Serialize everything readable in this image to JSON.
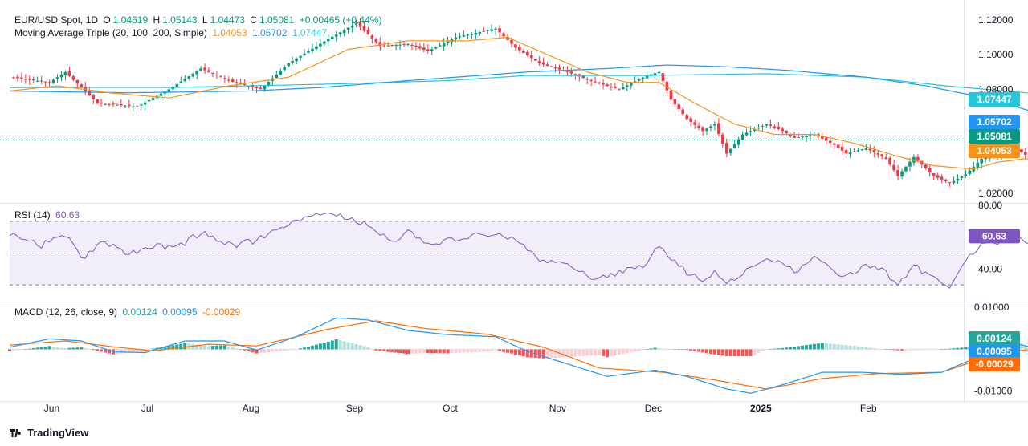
{
  "header": {
    "symbol": "EUR/USD Spot, 1D",
    "open_label": "O",
    "open": "1.04619",
    "high_label": "H",
    "high": "1.05143",
    "low_label": "L",
    "low": "1.04473",
    "close_label": "C",
    "close": "1.05081",
    "change": "+0.00465 (+0.44%)"
  },
  "ma_legend": {
    "label": "Moving Average Triple (20, 100, 200, Simple)",
    "ma20": "1.04053",
    "ma100": "1.05702",
    "ma200": "1.07447"
  },
  "rsi_legend": {
    "label": "RSI (14)",
    "value": "60.63"
  },
  "macd_legend": {
    "label": "MACD (12, 26, close, 9)",
    "histogram": "0.00124",
    "macd": "0.00095",
    "signal": "-0.00029"
  },
  "footer": {
    "brand": "TradingView"
  },
  "colors": {
    "up": "#089981",
    "down": "#f23645",
    "ma20": "#f7931a",
    "ma100": "#2196f3",
    "ma200": "#26c6da",
    "rsi": "#7e57c2",
    "macd": "#2196f3",
    "signal": "#ff6d00",
    "hist_up": "#26a69a",
    "hist_up_light": "#b2dfdb",
    "hist_down": "#ff5252",
    "hist_down_light": "#ffcdd2"
  },
  "chart_data": [
    {
      "type": "candlestick",
      "title": "EUR/USD Spot, 1D",
      "ylim": [
        1.015,
        1.125
      ],
      "y_ticks": [
        "1.12000",
        "1.10000",
        "1.08000",
        "1.02000"
      ],
      "x_ticks": [
        "Jun",
        "Jul",
        "Aug",
        "Sep",
        "Oct",
        "Nov",
        "Dec",
        "2025",
        "Feb"
      ],
      "close_anchors": [
        [
          0,
          1.087
        ],
        [
          10,
          1.084
        ],
        [
          14,
          1.09
        ],
        [
          22,
          1.072
        ],
        [
          32,
          1.07
        ],
        [
          40,
          1.08
        ],
        [
          48,
          1.092
        ],
        [
          55,
          1.085
        ],
        [
          63,
          1.08
        ],
        [
          70,
          1.095
        ],
        [
          80,
          1.109
        ],
        [
          87,
          1.118
        ],
        [
          93,
          1.105
        ],
        [
          100,
          1.106
        ],
        [
          105,
          1.102
        ],
        [
          112,
          1.11
        ],
        [
          118,
          1.113
        ],
        [
          122,
          1.115
        ],
        [
          127,
          1.104
        ],
        [
          133,
          1.095
        ],
        [
          140,
          1.09
        ],
        [
          147,
          1.084
        ],
        [
          153,
          1.08
        ],
        [
          160,
          1.088
        ],
        [
          163,
          1.09
        ],
        [
          166,
          1.074
        ],
        [
          170,
          1.063
        ],
        [
          174,
          1.056
        ],
        [
          177,
          1.06
        ],
        [
          180,
          1.043
        ],
        [
          184,
          1.054
        ],
        [
          190,
          1.06
        ],
        [
          194,
          1.056
        ],
        [
          197,
          1.052
        ],
        [
          202,
          1.054
        ],
        [
          207,
          1.048
        ],
        [
          210,
          1.043
        ],
        [
          215,
          1.046
        ],
        [
          220,
          1.04
        ],
        [
          223,
          1.03
        ],
        [
          227,
          1.041
        ],
        [
          232,
          1.03
        ],
        [
          236,
          1.026
        ],
        [
          240,
          1.031
        ],
        [
          244,
          1.04
        ],
        [
          248,
          1.042
        ],
        [
          251,
          1.047
        ],
        [
          254,
          1.044
        ],
        [
          257,
          1.039
        ],
        [
          260,
          1.032
        ],
        [
          263,
          1.038
        ],
        [
          265,
          1.03
        ],
        [
          267,
          1.03
        ],
        [
          270,
          1.038
        ],
        [
          272,
          1.042
        ],
        [
          273,
          1.0508
        ]
      ],
      "ma20_anchors": [
        [
          0,
          1.079
        ],
        [
          12,
          1.082
        ],
        [
          25,
          1.078
        ],
        [
          40,
          1.075
        ],
        [
          55,
          1.082
        ],
        [
          70,
          1.087
        ],
        [
          85,
          1.103
        ],
        [
          100,
          1.108
        ],
        [
          115,
          1.108
        ],
        [
          125,
          1.11
        ],
        [
          135,
          1.1
        ],
        [
          145,
          1.09
        ],
        [
          155,
          1.084
        ],
        [
          163,
          1.084
        ],
        [
          172,
          1.072
        ],
        [
          182,
          1.06
        ],
        [
          192,
          1.054
        ],
        [
          202,
          1.054
        ],
        [
          212,
          1.049
        ],
        [
          222,
          1.042
        ],
        [
          232,
          1.036
        ],
        [
          242,
          1.034
        ],
        [
          248,
          1.038
        ],
        [
          255,
          1.04
        ],
        [
          263,
          1.038
        ],
        [
          273,
          1.0405
        ]
      ],
      "ma100_anchors": [
        [
          0,
          1.079
        ],
        [
          30,
          1.078
        ],
        [
          60,
          1.079
        ],
        [
          78,
          1.081
        ],
        [
          100,
          1.085
        ],
        [
          130,
          1.09
        ],
        [
          150,
          1.092
        ],
        [
          165,
          1.094
        ],
        [
          180,
          1.093
        ],
        [
          195,
          1.091
        ],
        [
          215,
          1.087
        ],
        [
          230,
          1.082
        ],
        [
          245,
          1.075
        ],
        [
          260,
          1.065
        ],
        [
          273,
          1.057
        ]
      ],
      "ma200_anchors": [
        [
          0,
          1.081
        ],
        [
          40,
          1.081
        ],
        [
          80,
          1.083
        ],
        [
          110,
          1.085
        ],
        [
          130,
          1.088
        ],
        [
          160,
          1.088
        ],
        [
          190,
          1.089
        ],
        [
          215,
          1.087
        ],
        [
          235,
          1.082
        ],
        [
          255,
          1.078
        ],
        [
          273,
          1.0745
        ]
      ],
      "last_close": 1.05081,
      "ma20": 1.04053,
      "ma100": 1.05702,
      "ma200": 1.07447
    },
    {
      "type": "line",
      "title": "RSI (14)",
      "ylim": [
        20,
        80
      ],
      "y_ticks": [
        "80.00",
        "40.00"
      ],
      "bands": [
        70,
        50,
        30
      ],
      "anchors": [
        [
          0,
          62
        ],
        [
          8,
          55
        ],
        [
          14,
          62
        ],
        [
          18,
          47
        ],
        [
          24,
          57
        ],
        [
          30,
          50
        ],
        [
          36,
          55
        ],
        [
          42,
          53
        ],
        [
          48,
          63
        ],
        [
          56,
          55
        ],
        [
          62,
          58
        ],
        [
          70,
          68
        ],
        [
          76,
          73
        ],
        [
          82,
          75
        ],
        [
          90,
          67
        ],
        [
          96,
          58
        ],
        [
          100,
          63
        ],
        [
          106,
          54
        ],
        [
          110,
          58
        ],
        [
          116,
          61
        ],
        [
          122,
          62
        ],
        [
          128,
          57
        ],
        [
          133,
          45
        ],
        [
          140,
          44
        ],
        [
          146,
          33
        ],
        [
          150,
          35
        ],
        [
          156,
          40
        ],
        [
          160,
          42
        ],
        [
          163,
          55
        ],
        [
          166,
          47
        ],
        [
          170,
          38
        ],
        [
          174,
          32
        ],
        [
          177,
          38
        ],
        [
          180,
          30
        ],
        [
          184,
          38
        ],
        [
          190,
          45
        ],
        [
          194,
          43
        ],
        [
          197,
          38
        ],
        [
          202,
          47
        ],
        [
          207,
          38
        ],
        [
          210,
          35
        ],
        [
          215,
          43
        ],
        [
          220,
          38
        ],
        [
          223,
          30
        ],
        [
          227,
          42
        ],
        [
          232,
          35
        ],
        [
          236,
          30
        ],
        [
          240,
          45
        ],
        [
          244,
          55
        ],
        [
          248,
          57
        ],
        [
          251,
          64
        ],
        [
          254,
          60
        ],
        [
          257,
          52
        ],
        [
          260,
          45
        ],
        [
          263,
          55
        ],
        [
          265,
          46
        ],
        [
          267,
          46
        ],
        [
          270,
          55
        ],
        [
          273,
          60.63
        ]
      ],
      "last": 60.63
    },
    {
      "type": "macd",
      "title": "MACD (12, 26, close, 9)",
      "ylim": [
        -0.012,
        0.011
      ],
      "y_ticks": [
        "0.01000",
        "-0.01000"
      ],
      "macd_anchors": [
        [
          0,
          0.0005
        ],
        [
          10,
          0.0025
        ],
        [
          18,
          0.002
        ],
        [
          26,
          -0.0006
        ],
        [
          34,
          -0.0008
        ],
        [
          44,
          0.002
        ],
        [
          54,
          0.002
        ],
        [
          62,
          -0.0002
        ],
        [
          72,
          0.003
        ],
        [
          82,
          0.0075
        ],
        [
          90,
          0.007
        ],
        [
          100,
          0.0045
        ],
        [
          110,
          0.0035
        ],
        [
          122,
          0.003
        ],
        [
          130,
          -0.0005
        ],
        [
          140,
          -0.0035
        ],
        [
          150,
          -0.0065
        ],
        [
          162,
          -0.005
        ],
        [
          170,
          -0.0065
        ],
        [
          180,
          -0.0095
        ],
        [
          186,
          -0.0105
        ],
        [
          194,
          -0.0085
        ],
        [
          204,
          -0.0055
        ],
        [
          214,
          -0.0055
        ],
        [
          224,
          -0.006
        ],
        [
          234,
          -0.0055
        ],
        [
          244,
          -0.0015
        ],
        [
          252,
          0.0015
        ],
        [
          260,
          -0.0003
        ],
        [
          266,
          -0.001
        ],
        [
          273,
          0.00095
        ]
      ],
      "signal_anchors": [
        [
          0,
          0.001
        ],
        [
          14,
          0.002
        ],
        [
          26,
          0.0006
        ],
        [
          36,
          -0.0004
        ],
        [
          50,
          0.0012
        ],
        [
          62,
          0.0008
        ],
        [
          80,
          0.0048
        ],
        [
          92,
          0.0068
        ],
        [
          104,
          0.005
        ],
        [
          120,
          0.0036
        ],
        [
          134,
          0.0005
        ],
        [
          148,
          -0.0045
        ],
        [
          164,
          -0.0055
        ],
        [
          176,
          -0.0072
        ],
        [
          190,
          -0.0095
        ],
        [
          204,
          -0.007
        ],
        [
          218,
          -0.0058
        ],
        [
          234,
          -0.0055
        ],
        [
          248,
          -0.001
        ],
        [
          258,
          0.0002
        ],
        [
          266,
          -0.0006
        ],
        [
          273,
          -0.00029
        ]
      ],
      "last_histogram": 0.00124,
      "last_macd": 0.00095,
      "last_signal": -0.00029
    }
  ]
}
